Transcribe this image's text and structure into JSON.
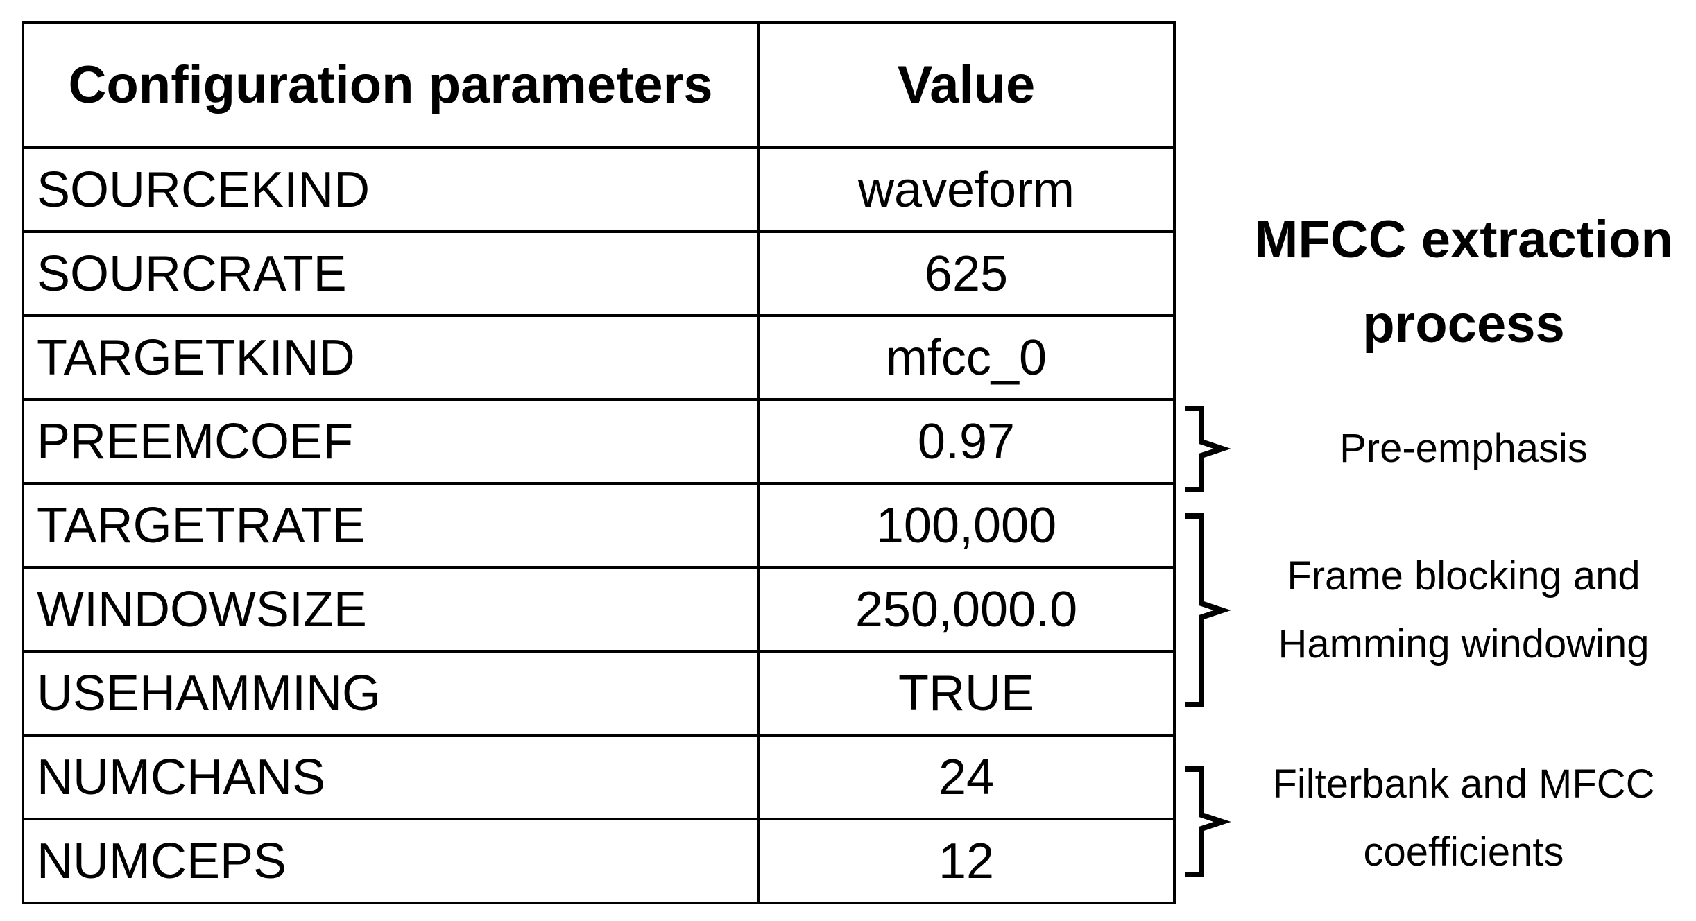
{
  "table": {
    "headers": [
      "Configuration parameters",
      "Value"
    ],
    "rows": [
      {
        "param": "SOURCEKIND",
        "value": "waveform"
      },
      {
        "param": "SOURCRATE",
        "value": "625"
      },
      {
        "param": "TARGETKIND",
        "value": "mfcc_0"
      },
      {
        "param": "PREEMCOEF",
        "value": "0.97"
      },
      {
        "param": "TARGETRATE",
        "value": "100,000"
      },
      {
        "param": "WINDOWSIZE",
        "value": "250,000.0"
      },
      {
        "param": "USEHAMMING",
        "value": "TRUE"
      },
      {
        "param": "NUMCHANS",
        "value": "24"
      },
      {
        "param": "NUMCEPS",
        "value": "12"
      }
    ]
  },
  "side": {
    "title_line1": "MFCC extraction",
    "title_line2": "process",
    "stages": [
      {
        "line1": "Pre-emphasis",
        "line2": ""
      },
      {
        "line1": "Frame blocking and",
        "line2": "Hamming windowing"
      },
      {
        "line1": "Filterbank and MFCC",
        "line2": "coefficients"
      }
    ]
  },
  "colors": {
    "text": "#000000",
    "border": "#000000",
    "background": "#ffffff"
  }
}
